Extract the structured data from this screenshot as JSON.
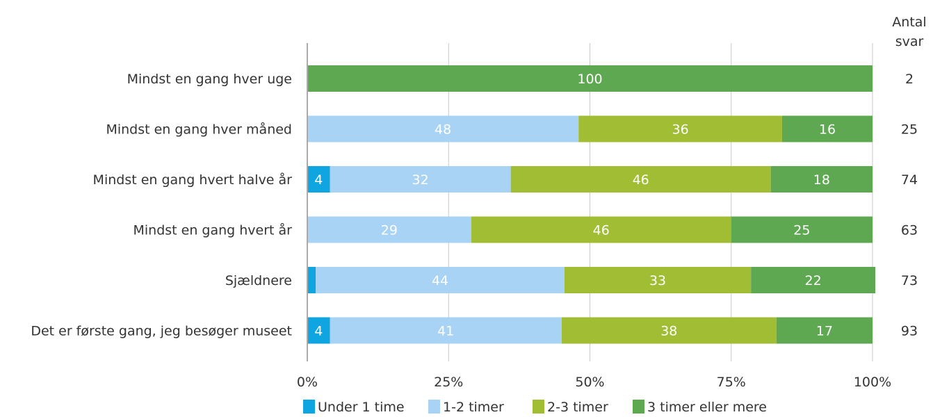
{
  "chart_data": {
    "type": "bar",
    "orientation": "horizontal",
    "stacked": true,
    "percent": true,
    "categories": [
      "Mindst en gang hver uge",
      "Mindst en gang hver måned",
      "Mindst en gang hvert halve år",
      "Mindst en gang hvert år",
      "Sjældnere",
      "Det er første gang, jeg besøger museet"
    ],
    "series": [
      {
        "name": "Under 1 time",
        "color": "#0ea5e0",
        "values": [
          0,
          0,
          4,
          0,
          1.5,
          4
        ]
      },
      {
        "name": "1-2 timer",
        "color": "#a9d3f5",
        "values": [
          0,
          48,
          32,
          29,
          44,
          41
        ]
      },
      {
        "name": "2-3 timer",
        "color": "#a1bd34",
        "values": [
          0,
          36,
          46,
          46,
          33,
          38
        ]
      },
      {
        "name": "3 timer eller mere",
        "color": "#5ea851",
        "values": [
          100,
          16,
          18,
          25,
          22,
          17
        ]
      }
    ],
    "segment_labels": [
      [
        "",
        "",
        "",
        "100"
      ],
      [
        "",
        "48",
        "36",
        "16"
      ],
      [
        "4",
        "32",
        "46",
        "18"
      ],
      [
        "",
        "29",
        "46",
        "25"
      ],
      [
        "",
        "44",
        "33",
        "22"
      ],
      [
        "4",
        "41",
        "38",
        "17"
      ]
    ],
    "xlim": [
      0,
      100
    ],
    "x_ticks": [
      "0%",
      "25%",
      "50%",
      "75%",
      "100%"
    ],
    "grid": true,
    "legend_position": "bottom",
    "count_header": [
      "Antal",
      "svar"
    ],
    "counts": [
      "2",
      "25",
      "74",
      "63",
      "73",
      "93"
    ]
  }
}
